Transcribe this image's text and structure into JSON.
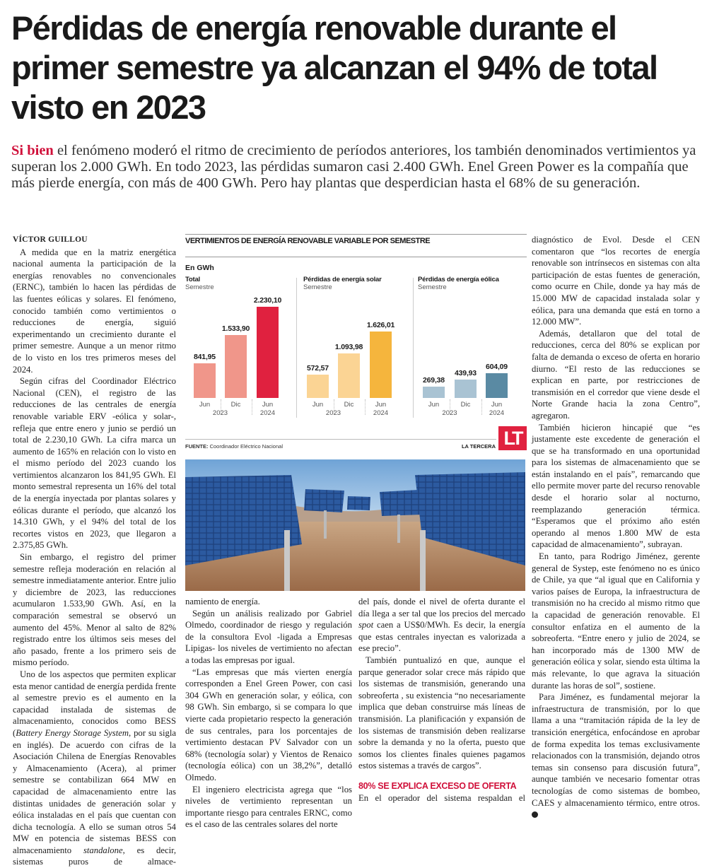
{
  "headline": "Pérdidas de energía renovable durante el primer semestre ya alcanzan el 94% de total visto en 2023",
  "lead": {
    "kicker": "Si bien",
    "text": " el fenómeno moderó el ritmo de crecimiento de períodos anteriores, los también denominados vertimientos ya superan los 2.000 GWh. En todo 2023, las pérdidas sumaron casi 2.400 GWh. Enel Green Power es la compañía que más pierde energía, con más de 400 GWh. Pero hay plantas que desperdician hasta el 68% de su generación."
  },
  "byline": "VÍCTOR GUILLOU",
  "columns": {
    "c1": [
      "A medida que en la matriz energética nacional aumenta la participación de la energías renovables no convencionales (ERNC), también lo hacen las pérdidas de las fuentes eólicas y solares. El fenómeno, conocido también como vertimientos o reducciones de energía, siguió experimentando un crecimiento durante el primer semestre. Aunque a un menor ritmo de lo visto en los tres primeros meses del 2024.",
      "Según cifras del Coordinador Eléctrico Nacional (CEN), el registro de las reducciones de las centrales de energía renovable variable ERV -eólica y solar-, refleja que entre enero y junio se perdió un total de 2.230,10 GWh. La cifra marca un aumento de 165% en relación con lo visto en el mismo período del 2023 cuando los vertimientos alcanzaron los 841,95 GWh. El monto semestral representa un 16% del total de la energía inyectada por plantas solares y eólicas durante el período, que alcanzó los 14.310 GWh, y el 94% del total de los recortes vistos en 2023, que llegaron a 2.375,85 GWh.",
      "Sin embargo, el registro del primer semestre refleja moderación en relación al semestre inmediatamente anterior. Entre julio y diciembre de 2023, las reducciones acumularon 1.533,90 GWh. Así, en la comparación semestral se observó un aumento del 45%. Menor al salto de 82% registrado entre los últimos seis meses del año pasado, frente a los primero seis de mismo período.",
      "Uno de los aspectos que permiten explicar esta menor cantidad de energía perdida frente al semestre previo es el aumento en la capacidad instalada de sistemas de almacenamiento, conocidos como BESS (",
      "Battery Energy Storage System",
      ", por su sigla en inglés). De acuerdo con cifras de la Asociación Chilena de Energías Renovables y Almacenamiento (Acera), al primer semestre se contabilizan 664 MW en capacidad de almacenamiento entre las distintas unidades de generación solar y eólica instaladas en el país que cuentan con dicha tecnología. A ello se suman otros 54 MW en potencia de sistemas BESS con almacenamiento ",
      "standalone",
      ", es decir, sistemas puros de almace-"
    ],
    "c2": [
      "namiento de energía.",
      "Según un análisis realizado por Gabriel Olmedo, coordinador de riesgo y regulación de la consultora Evol -ligada a Empresas Lipigas- los niveles de vertimiento no afectan a todas las empresas por igual.",
      "“Las empresas que más vierten energía corresponden a Enel Green Power, con casi 304 GWh en generación solar, y eólica, con 98 GWh. Sin embargo, si se compara lo que vierte cada propietario respecto la generación de sus centrales, para los porcentajes de vertimiento destacan PV Salvador con un 68% (tecnología solar) y Vientos de Renaico (tecnología eólica) con un 38,2%”, detalló Olmedo.",
      "El ingeniero electricista agrega que “los niveles de vertimiento representan un importante riesgo para centrales ERNC, como es el caso de las centrales solares del norte"
    ],
    "c3": [
      "del país, donde el nivel de oferta durante el día llega a ser tal que los precios del mercado ",
      "spot",
      " caen a US$0/MWh. Es decir, la energía que estas centrales inyectan es valorizada a ese precio”.",
      "También puntualizó en que, aunque el parque generador solar crece más rápido que los sistemas de transmisión, generando una sobreoferta , su existencia “no necesariamente implica que deban construirse más líneas de transmisión. La planificación y expansión de los sistemas de transmisión deben realizarse sobre la demanda y no la oferta, puesto que somos los clientes finales quienes pagamos estos sistemas a través de cargos”.",
      "80% SE EXPLICA EXCESO DE OFERTA",
      "En el operador del sistema respaldan el"
    ],
    "c4": [
      "diagnóstico de Evol. Desde el CEN comentaron que “los recortes de energía renovable son intrínsecos en sistemas con alta participación de estas fuentes de generación, como ocurre en Chile, donde ya hay más de 15.000 MW de capacidad instalada solar y eólica, para una demanda que está en torno a 12.000 MW”.",
      "Además, detallaron que del total de reducciones, cerca del 80% se explican por falta de demanda o exceso de oferta en horario diurno. “El resto de las reducciones se explican en parte, por restricciones de transmisión en el corredor que viene desde el Norte Grande hacia la zona Centro”, agregaron.",
      "También hicieron hincapié que “es justamente este excedente de generación el que se ha transformado en una oportunidad para los sistemas de almacenamiento que se están instalando en el país”, remarcando que ello permite mover parte del recurso renovable desde el horario solar al nocturno, reemplazando generación térmica. “Esperamos que el próximo año estén operando al menos 1.800 MW de esta capacidad de almacenamiento”, subrayan.",
      "En tanto, para Rodrigo Jiménez, gerente general de Systep, este fenómeno no es único de Chile, ya que “al igual que en California y varios países de Europa, la infraestructura de transmisión no ha crecido al mismo ritmo que la capacidad de generación renovable. El consultor enfatiza en el aumento de la sobreoferta. “Entre enero y julio de 2024, se han incorporado más de 1300 MW de generación eólica y solar, siendo esta última la más relevante, lo que agrava la situación durante las horas de sol”, sostiene.",
      "Para Jiménez, es fundamental mejorar la infraestructura de transmisión, por lo que llama a una “tramitación rápida de la ley de transición energética, enfocándose en aprobar de forma expedita los temas exclusivamente relacionados con la transmisión, dejando otros temas sin consenso para discusión futura”, aunque también ve necesario fomentar otras tecnologías de como sistemas de bombeo, CAES y almacenamiento térmico, entre otros."
    ]
  },
  "chart_data": {
    "type": "bar",
    "title": "VERTIMIENTOS DE ENERGÍA RENOVABLE VARIABLE POR SEMESTRE",
    "unit": "En GWh",
    "categories": [
      "Jun",
      "Dic",
      "Jun"
    ],
    "years": [
      "2023",
      "2024"
    ],
    "panels": [
      {
        "title": "Total",
        "subtitle": "Semestre",
        "values": [
          841.95,
          1533.9,
          2230.1
        ],
        "labels": [
          "841,95",
          "1.533,90",
          "2.230,10"
        ],
        "colors": [
          "#f0968a",
          "#f0968a",
          "#e0213f"
        ]
      },
      {
        "title": "Pérdidas de energía solar",
        "subtitle": "Semestre",
        "values": [
          572.57,
          1093.98,
          1626.01
        ],
        "labels": [
          "572,57",
          "1.093,98",
          "1.626,01"
        ],
        "colors": [
          "#fbd494",
          "#fbd494",
          "#f5b53d"
        ]
      },
      {
        "title": "Pérdidas de energía eólica",
        "subtitle": "Semestre",
        "values": [
          269.38,
          439.93,
          604.09
        ],
        "labels": [
          "269,38",
          "439,93",
          "604,09"
        ],
        "colors": [
          "#a9c3d3",
          "#a9c3d3",
          "#5a8aa3"
        ]
      }
    ],
    "source_label": "FUENTE:",
    "source": "Coordinador Eléctrico Nacional",
    "brand": "LA TERCERA",
    "logo": "LT"
  }
}
